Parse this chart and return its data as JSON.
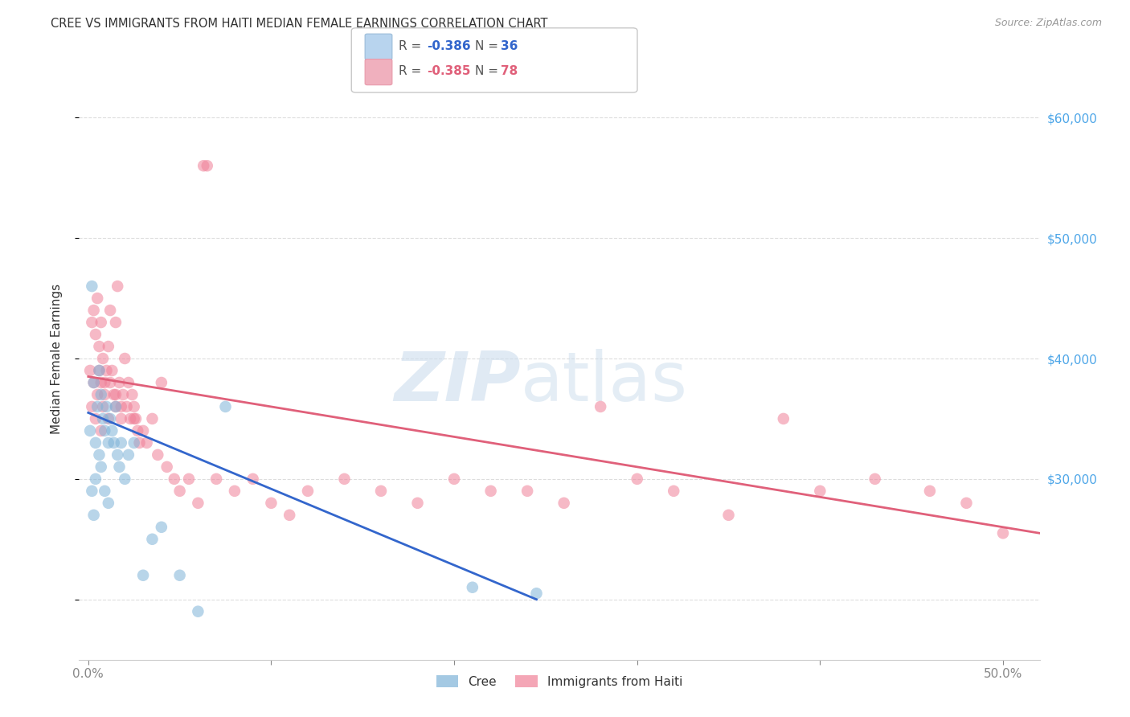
{
  "title": "CREE VS IMMIGRANTS FROM HAITI MEDIAN FEMALE EARNINGS CORRELATION CHART",
  "source": "Source: ZipAtlas.com",
  "ylabel": "Median Female Earnings",
  "ylim": [
    15000,
    65000
  ],
  "xlim": [
    -0.005,
    0.52
  ],
  "series1_name": "Cree",
  "series2_name": "Immigrants from Haiti",
  "series1_color": "#7eb3d8",
  "series2_color": "#f08098",
  "series1_line_color": "#3366cc",
  "series2_line_color": "#e0607a",
  "background_color": "#ffffff",
  "grid_color": "#dddddd",
  "title_color": "#333333",
  "right_tick_color": "#4da6e8",
  "cree_x": [
    0.001,
    0.002,
    0.002,
    0.003,
    0.003,
    0.004,
    0.004,
    0.005,
    0.006,
    0.006,
    0.007,
    0.007,
    0.008,
    0.009,
    0.009,
    0.01,
    0.011,
    0.011,
    0.012,
    0.013,
    0.014,
    0.015,
    0.016,
    0.017,
    0.018,
    0.02,
    0.022,
    0.025,
    0.03,
    0.035,
    0.04,
    0.05,
    0.06,
    0.075,
    0.21,
    0.245
  ],
  "cree_y": [
    34000,
    46000,
    29000,
    38000,
    27000,
    33000,
    30000,
    36000,
    39000,
    32000,
    37000,
    31000,
    35000,
    34000,
    29000,
    36000,
    33000,
    28000,
    35000,
    34000,
    33000,
    36000,
    32000,
    31000,
    33000,
    30000,
    32000,
    33000,
    22000,
    25000,
    26000,
    22000,
    19000,
    36000,
    21000,
    20500
  ],
  "haiti_x": [
    0.001,
    0.002,
    0.002,
    0.003,
    0.003,
    0.004,
    0.004,
    0.005,
    0.005,
    0.006,
    0.006,
    0.007,
    0.007,
    0.008,
    0.008,
    0.009,
    0.01,
    0.011,
    0.011,
    0.012,
    0.012,
    0.013,
    0.014,
    0.015,
    0.015,
    0.016,
    0.017,
    0.018,
    0.019,
    0.02,
    0.021,
    0.022,
    0.023,
    0.024,
    0.025,
    0.026,
    0.027,
    0.028,
    0.03,
    0.032,
    0.035,
    0.038,
    0.04,
    0.043,
    0.047,
    0.05,
    0.055,
    0.06,
    0.065,
    0.07,
    0.08,
    0.09,
    0.1,
    0.11,
    0.12,
    0.14,
    0.16,
    0.18,
    0.2,
    0.22,
    0.24,
    0.26,
    0.28,
    0.3,
    0.32,
    0.35,
    0.38,
    0.4,
    0.43,
    0.46,
    0.48,
    0.5,
    0.063,
    0.015,
    0.025,
    0.018,
    0.009,
    0.007
  ],
  "haiti_y": [
    39000,
    43000,
    36000,
    44000,
    38000,
    42000,
    35000,
    45000,
    37000,
    39000,
    41000,
    38000,
    43000,
    36000,
    40000,
    37000,
    39000,
    41000,
    35000,
    38000,
    44000,
    39000,
    37000,
    43000,
    36000,
    46000,
    38000,
    35000,
    37000,
    40000,
    36000,
    38000,
    35000,
    37000,
    36000,
    35000,
    34000,
    33000,
    34000,
    33000,
    35000,
    32000,
    38000,
    31000,
    30000,
    29000,
    30000,
    28000,
    56000,
    30000,
    29000,
    30000,
    28000,
    27000,
    29000,
    30000,
    29000,
    28000,
    30000,
    29000,
    29000,
    28000,
    36000,
    30000,
    29000,
    27000,
    35000,
    29000,
    30000,
    29000,
    28000,
    25500,
    56000,
    37000,
    35000,
    36000,
    38000,
    34000
  ],
  "cree_trend_x0": 0.0,
  "cree_trend_y0": 35500,
  "cree_trend_x1": 0.245,
  "cree_trend_y1": 20000,
  "haiti_trend_x0": 0.0,
  "haiti_trend_y0": 38500,
  "haiti_trend_x1": 0.52,
  "haiti_trend_y1": 25500
}
